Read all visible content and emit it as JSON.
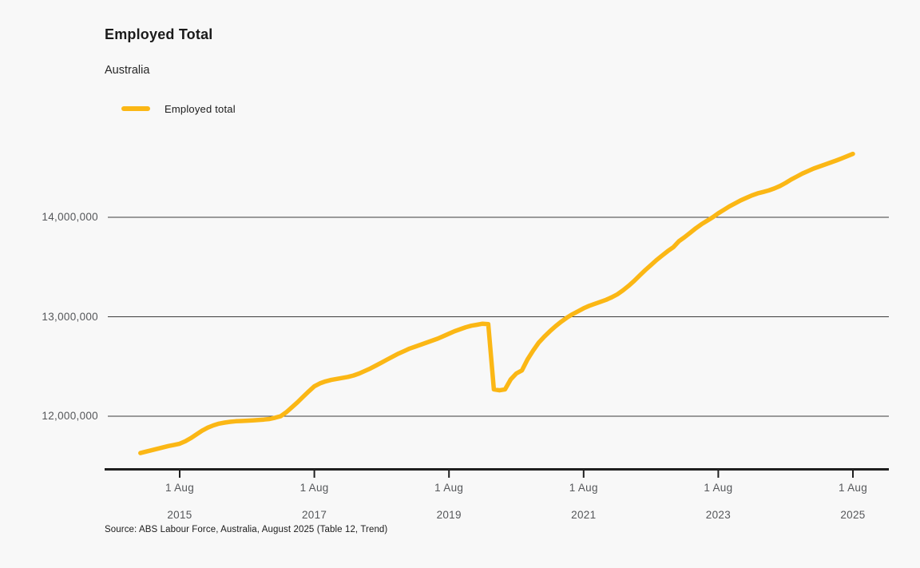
{
  "header": {
    "title": "Employed Total",
    "subtitle": "Australia"
  },
  "legend": {
    "items": [
      {
        "label": "Employed total",
        "color": "#FBB715"
      }
    ]
  },
  "source": "Source: ABS Labour Force, Australia, August 2025 (Table 12, Trend)",
  "colors": {
    "background": "#F8F8F8",
    "line": "#FBB715",
    "axis": "#1F1F1F",
    "gridline": "#3C3C3C",
    "tick_label": "#55575A"
  },
  "chart_data": {
    "type": "line",
    "title": "Employed Total",
    "subtitle": "Australia",
    "xlabel": "",
    "ylabel": "",
    "grid": "horizontal only",
    "legend_position": "top-left",
    "y_axis": {
      "range": [
        11450000,
        14800000
      ],
      "ticks": [
        {
          "value": 12000000,
          "label": "12,000,000"
        },
        {
          "value": 13000000,
          "label": "13,000,000"
        },
        {
          "value": 14000000,
          "label": "14,000,000"
        }
      ]
    },
    "x_axis": {
      "ticks": [
        {
          "month": "1 Aug",
          "year": "2015"
        },
        {
          "month": "1 Aug",
          "year": "2017"
        },
        {
          "month": "1 Aug",
          "year": "2019"
        },
        {
          "month": "1 Aug",
          "year": "2021"
        },
        {
          "month": "1 Aug",
          "year": "2023"
        },
        {
          "month": "1 Aug",
          "year": "2025"
        }
      ]
    },
    "series": [
      {
        "name": "Employed total",
        "color": "#FBB715",
        "unit": "persons",
        "frequency": "monthly",
        "start_month": "2015-01",
        "end_month": "2025-08",
        "values": [
          11630000,
          11644000,
          11658000,
          11672000,
          11686000,
          11700000,
          11712000,
          11724000,
          11748000,
          11780000,
          11818000,
          11855000,
          11885000,
          11908000,
          11925000,
          11936000,
          11944000,
          11949000,
          11952000,
          11955000,
          11958000,
          11962000,
          11966000,
          11972000,
          11985000,
          12000000,
          12040000,
          12090000,
          12140000,
          12195000,
          12250000,
          12300000,
          12330000,
          12350000,
          12365000,
          12375000,
          12385000,
          12395000,
          12410000,
          12430000,
          12455000,
          12480000,
          12510000,
          12540000,
          12570000,
          12600000,
          12630000,
          12655000,
          12680000,
          12700000,
          12720000,
          12740000,
          12760000,
          12780000,
          12805000,
          12830000,
          12855000,
          12875000,
          12895000,
          12910000,
          12920000,
          12930000,
          12925000,
          12270000,
          12260000,
          12270000,
          12370000,
          12430000,
          12460000,
          12570000,
          12660000,
          12740000,
          12800000,
          12855000,
          12905000,
          12950000,
          12990000,
          13025000,
          13055000,
          13085000,
          13110000,
          13130000,
          13150000,
          13170000,
          13195000,
          13225000,
          13265000,
          13310000,
          13360000,
          13415000,
          13470000,
          13520000,
          13570000,
          13615000,
          13660000,
          13700000,
          13760000,
          13800000,
          13845000,
          13890000,
          13930000,
          13965000,
          14000000,
          14040000,
          14075000,
          14110000,
          14140000,
          14170000,
          14195000,
          14220000,
          14240000,
          14255000,
          14270000,
          14290000,
          14315000,
          14345000,
          14380000,
          14410000,
          14440000,
          14465000,
          14490000,
          14510000,
          14530000,
          14550000,
          14570000,
          14592000,
          14615000,
          14638000
        ]
      }
    ]
  }
}
